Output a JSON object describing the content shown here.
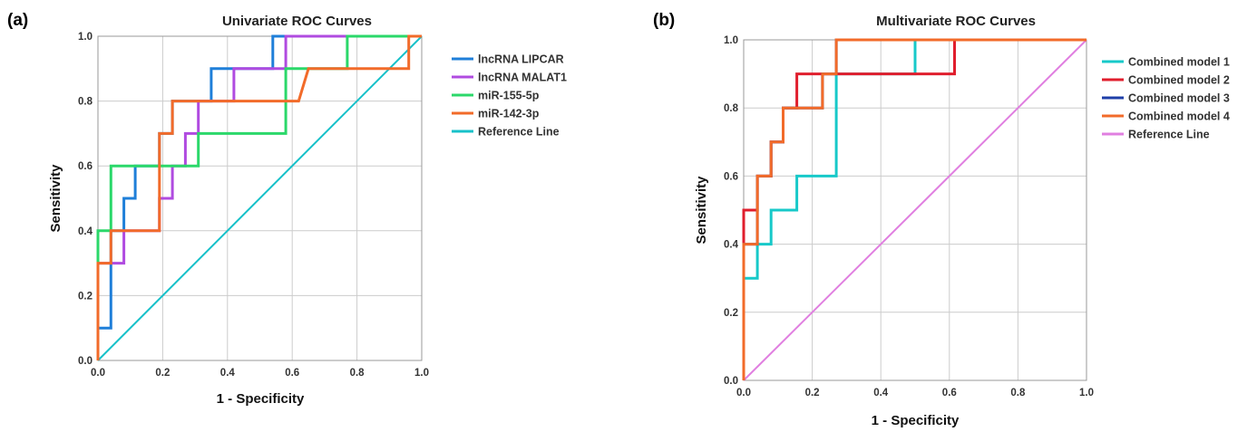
{
  "chart_data": [
    {
      "type": "line",
      "panel_label": "(a)",
      "title": "Univariate ROC Curves",
      "xlabel": "1 - Specificity",
      "ylabel": "Sensitivity",
      "xlim": [
        0,
        1
      ],
      "ylim": [
        0,
        1
      ],
      "xticks": [
        "0.0",
        "0.2",
        "0.4",
        "0.6",
        "0.8",
        "1.0"
      ],
      "yticks": [
        "0.0",
        "0.2",
        "0.4",
        "0.6",
        "0.8",
        "1.0"
      ],
      "grid": true,
      "legend_position": "right",
      "series": [
        {
          "name": "lncRNA LIPCAR",
          "color": "#1f7fd9",
          "points": [
            [
              0,
              0
            ],
            [
              0,
              0.1
            ],
            [
              0.04,
              0.1
            ],
            [
              0.04,
              0.4
            ],
            [
              0.08,
              0.4
            ],
            [
              0.08,
              0.5
            ],
            [
              0.115,
              0.5
            ],
            [
              0.115,
              0.6
            ],
            [
              0.19,
              0.6
            ],
            [
              0.19,
              0.7
            ],
            [
              0.23,
              0.7
            ],
            [
              0.23,
              0.8
            ],
            [
              0.35,
              0.8
            ],
            [
              0.35,
              0.9
            ],
            [
              0.54,
              0.9
            ],
            [
              0.54,
              1.0
            ],
            [
              1,
              1
            ]
          ]
        },
        {
          "name": "lncRNA MALAT1",
          "color": "#b04be0",
          "points": [
            [
              0,
              0
            ],
            [
              0,
              0.3
            ],
            [
              0.08,
              0.3
            ],
            [
              0.08,
              0.4
            ],
            [
              0.19,
              0.4
            ],
            [
              0.19,
              0.5
            ],
            [
              0.23,
              0.5
            ],
            [
              0.23,
              0.6
            ],
            [
              0.27,
              0.6
            ],
            [
              0.27,
              0.7
            ],
            [
              0.31,
              0.7
            ],
            [
              0.31,
              0.8
            ],
            [
              0.42,
              0.8
            ],
            [
              0.42,
              0.9
            ],
            [
              0.58,
              0.9
            ],
            [
              0.58,
              1.0
            ],
            [
              1,
              1
            ]
          ]
        },
        {
          "name": "miR-155-5p",
          "color": "#2bd86a",
          "points": [
            [
              0,
              0
            ],
            [
              0,
              0.4
            ],
            [
              0.04,
              0.4
            ],
            [
              0.04,
              0.6
            ],
            [
              0.31,
              0.6
            ],
            [
              0.31,
              0.7
            ],
            [
              0.58,
              0.7
            ],
            [
              0.58,
              0.9
            ],
            [
              0.77,
              0.9
            ],
            [
              0.77,
              1.0
            ],
            [
              1,
              1
            ]
          ]
        },
        {
          "name": "miR-142-3p",
          "color": "#f26b2a",
          "points": [
            [
              0,
              0
            ],
            [
              0,
              0.3
            ],
            [
              0.04,
              0.3
            ],
            [
              0.04,
              0.4
            ],
            [
              0.19,
              0.4
            ],
            [
              0.19,
              0.7
            ],
            [
              0.23,
              0.7
            ],
            [
              0.23,
              0.8
            ],
            [
              0.62,
              0.8
            ],
            [
              0.65,
              0.9
            ],
            [
              0.96,
              0.9
            ],
            [
              0.96,
              1.0
            ],
            [
              1,
              1
            ]
          ]
        },
        {
          "name": "Reference Line",
          "color": "#17c1c9",
          "points": [
            [
              0,
              0
            ],
            [
              1,
              1
            ]
          ]
        }
      ]
    },
    {
      "type": "line",
      "panel_label": "(b)",
      "title": "Multivariate ROC Curves",
      "xlabel": "1 - Specificity",
      "ylabel": "Sensitivity",
      "xlim": [
        0,
        1
      ],
      "ylim": [
        0,
        1
      ],
      "xticks": [
        "0.0",
        "0.2",
        "0.4",
        "0.6",
        "0.8",
        "1.0"
      ],
      "yticks": [
        "0.0",
        "0.2",
        "0.4",
        "0.6",
        "0.8",
        "1.0"
      ],
      "grid": true,
      "legend_position": "right",
      "series": [
        {
          "name": "Combined model 1",
          "color": "#17c9c9",
          "points": [
            [
              0,
              0
            ],
            [
              0,
              0.3
            ],
            [
              0.04,
              0.3
            ],
            [
              0.04,
              0.4
            ],
            [
              0.08,
              0.4
            ],
            [
              0.08,
              0.5
            ],
            [
              0.155,
              0.5
            ],
            [
              0.155,
              0.6
            ],
            [
              0.27,
              0.6
            ],
            [
              0.27,
              0.9
            ],
            [
              0.5,
              0.9
            ],
            [
              0.5,
              1.0
            ],
            [
              1,
              1
            ]
          ]
        },
        {
          "name": "Combined model 2",
          "color": "#e01e2d",
          "points": [
            [
              0,
              0
            ],
            [
              0,
              0.5
            ],
            [
              0.04,
              0.5
            ],
            [
              0.04,
              0.6
            ],
            [
              0.08,
              0.6
            ],
            [
              0.08,
              0.7
            ],
            [
              0.115,
              0.7
            ],
            [
              0.115,
              0.8
            ],
            [
              0.155,
              0.8
            ],
            [
              0.155,
              0.9
            ],
            [
              0.615,
              0.9
            ],
            [
              0.615,
              1.0
            ],
            [
              1,
              1
            ]
          ]
        },
        {
          "name": "Combined model 3",
          "color": "#1f3fa8",
          "points": [
            [
              0,
              0
            ],
            [
              0,
              0.4
            ],
            [
              0.04,
              0.4
            ],
            [
              0.04,
              0.6
            ],
            [
              0.08,
              0.6
            ],
            [
              0.08,
              0.7
            ],
            [
              0.115,
              0.7
            ],
            [
              0.115,
              0.8
            ],
            [
              0.23,
              0.8
            ],
            [
              0.23,
              0.9
            ],
            [
              0.27,
              0.9
            ],
            [
              0.27,
              1.0
            ],
            [
              1,
              1
            ]
          ]
        },
        {
          "name": "Combined model 4",
          "color": "#f26b2a",
          "points": [
            [
              0,
              0
            ],
            [
              0,
              0.4
            ],
            [
              0.04,
              0.4
            ],
            [
              0.04,
              0.6
            ],
            [
              0.08,
              0.6
            ],
            [
              0.08,
              0.7
            ],
            [
              0.115,
              0.7
            ],
            [
              0.115,
              0.8
            ],
            [
              0.23,
              0.8
            ],
            [
              0.23,
              0.9
            ],
            [
              0.27,
              0.9
            ],
            [
              0.27,
              1.0
            ],
            [
              1,
              1
            ]
          ]
        },
        {
          "name": "Reference Line",
          "color": "#e07fe0",
          "points": [
            [
              0,
              0
            ],
            [
              1,
              1
            ]
          ]
        }
      ]
    }
  ]
}
